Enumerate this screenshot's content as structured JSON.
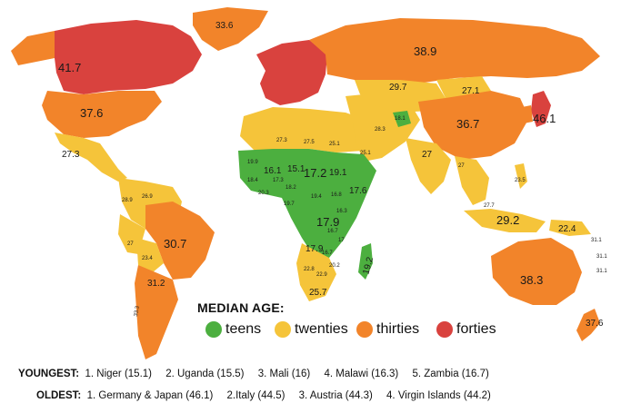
{
  "colors": {
    "teens": "#4caf3f",
    "twenties": "#f5c43a",
    "thirties": "#f2842a",
    "forties": "#d9423e"
  },
  "labels": {
    "canada": "41.7",
    "greenland": "33.6",
    "russia": "38.9",
    "usa": "37.6",
    "mexico": "27.3",
    "kazakhstan": "29.7",
    "mongolia": "27.1",
    "china": "36.7",
    "japan": "46.1",
    "afghanistan": "18.1",
    "iran": "28.3",
    "india": "27",
    "saudi": "25.1",
    "egypt": "25.1",
    "algeria": "27.3",
    "libya": "27.5",
    "mali": "16.1",
    "niger": "15.1",
    "chad": "17.2",
    "sudan": "19.1",
    "nigeria": "18.2",
    "drc": "17.9",
    "ethiopia": "17.6",
    "kenya": "19.4",
    "angola": "17.9",
    "zambia": "16.7",
    "namibia": "22.8",
    "botswana": "22.9",
    "south_africa": "25.7",
    "madagascar": "19.2",
    "brazil": "30.7",
    "bolivia": "23.4",
    "peru": "27",
    "argentina": "31.2",
    "chile": "33.3",
    "colombia": "28.9",
    "venezuela": "26.9",
    "indonesia": "29.2",
    "philippines": "23.5",
    "png": "22.4",
    "australia": "38.3",
    "new_zealand": "37.6",
    "malaysia": "27.7",
    "myanmar": "27",
    "west_africa_1": "19.9",
    "west_africa_2": "20.3",
    "west_africa_3": "18.4",
    "west_africa_4": "17.3",
    "central_1": "16.8",
    "central_2": "19.7",
    "east_1": "16.3",
    "mozambique": "17",
    "east_2": "16.7",
    "oceania_1": "31.1",
    "oceania_2": "31.1",
    "oceania_3": "31.1",
    "zimbabwe": "20.2"
  },
  "legend": {
    "title": "MEDIAN AGE:",
    "items": [
      {
        "label": "teens",
        "color": "#4caf3f"
      },
      {
        "label": "twenties",
        "color": "#f5c43a"
      },
      {
        "label": "thirties",
        "color": "#f2842a"
      },
      {
        "label": "forties",
        "color": "#d9423e"
      }
    ]
  },
  "youngest": {
    "heading": "YOUNGEST:",
    "items": [
      "1. Niger (15.1)",
      "2. Uganda (15.5)",
      "3. Mali (16)",
      "4. Malawi (16.3)",
      "5. Zambia (16.7)"
    ]
  },
  "oldest": {
    "heading": "OLDEST:",
    "items": [
      "1. Germany & Japan (46.1)",
      "2.Italy (44.5)",
      "3. Austria (44.3)",
      "4. Virgin Islands (44.2)"
    ]
  }
}
